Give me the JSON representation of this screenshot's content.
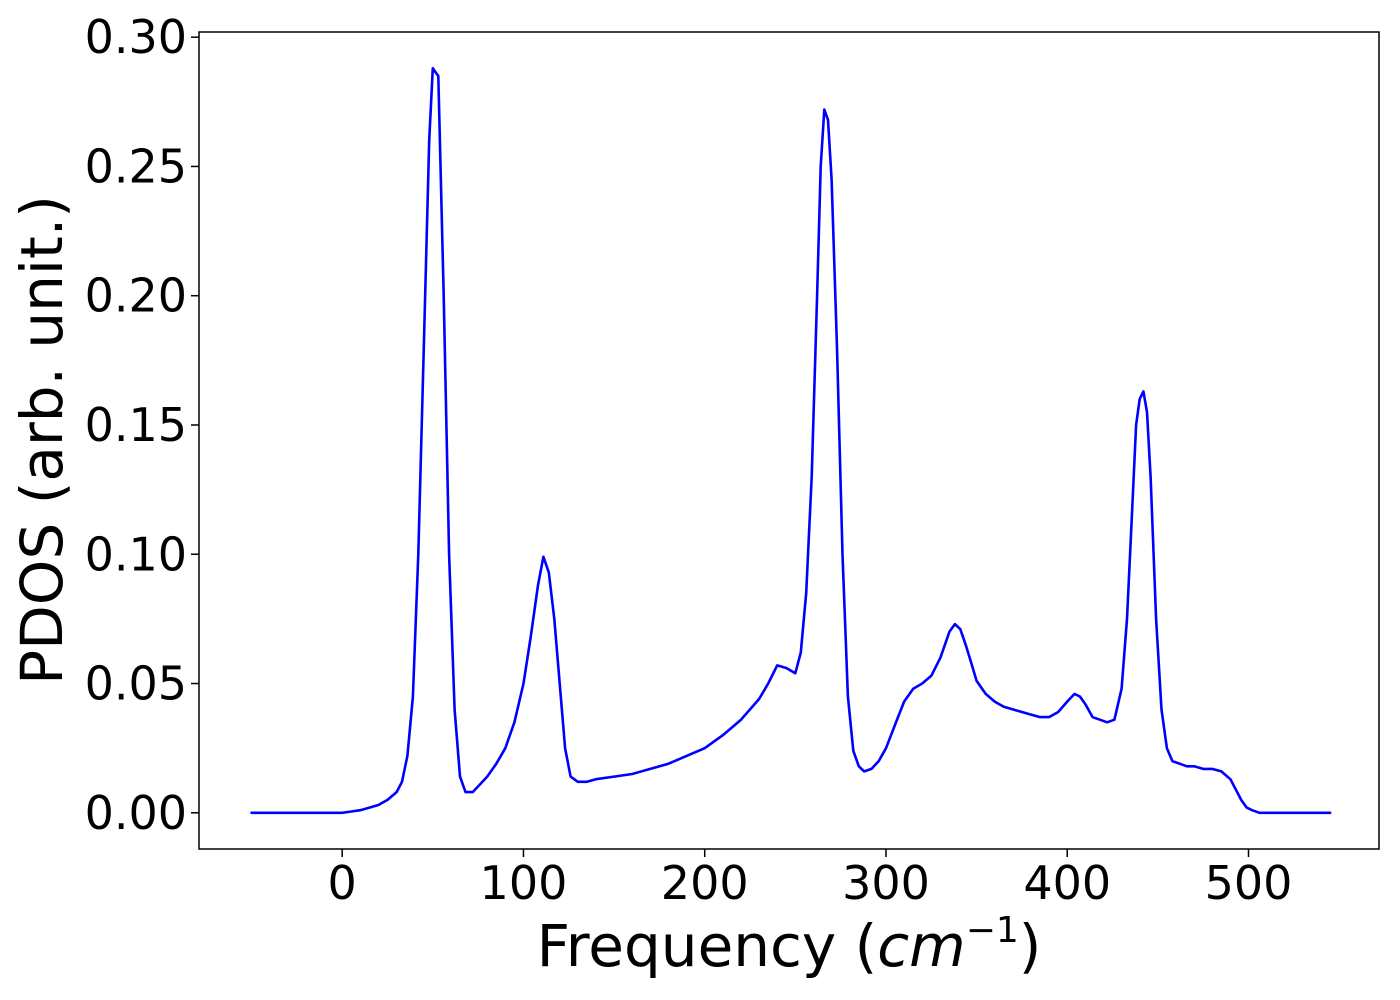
{
  "chart_data": {
    "type": "line",
    "title": "",
    "xlabel_prefix": "Frequency (",
    "xlabel_unit": "cm",
    "xlabel_exponent": "−1",
    "xlabel_suffix": ")",
    "ylabel": "PDOS (arb. unit.)",
    "xlim": [
      -79,
      572
    ],
    "ylim": [
      -0.014,
      0.302
    ],
    "xticks": [
      0,
      100,
      200,
      300,
      400,
      500
    ],
    "xtick_labels": [
      "0",
      "100",
      "200",
      "300",
      "400",
      "500"
    ],
    "yticks": [
      0.0,
      0.05,
      0.1,
      0.15,
      0.2,
      0.25,
      0.3
    ],
    "ytick_labels": [
      "0.00",
      "0.05",
      "0.10",
      "0.15",
      "0.20",
      "0.25",
      "0.30"
    ],
    "grid": false,
    "legend": "none",
    "series": [
      {
        "color": "#0000ff",
        "x": [
          -50,
          -40,
          -30,
          -20,
          -10,
          0,
          5,
          10,
          15,
          20,
          25,
          30,
          33,
          36,
          39,
          42,
          45,
          48,
          50,
          53,
          56,
          59,
          62,
          65,
          68,
          72,
          76,
          80,
          85,
          90,
          95,
          100,
          104,
          108,
          111,
          114,
          117,
          120,
          123,
          126,
          130,
          135,
          140,
          150,
          160,
          170,
          180,
          190,
          200,
          210,
          220,
          230,
          235,
          240,
          245,
          250,
          253,
          256,
          259,
          262,
          264,
          266,
          268,
          270,
          273,
          276,
          279,
          282,
          285,
          288,
          292,
          296,
          300,
          305,
          310,
          315,
          320,
          325,
          330,
          335,
          338,
          341,
          344,
          347,
          350,
          355,
          360,
          365,
          370,
          375,
          380,
          385,
          390,
          395,
          400,
          404,
          407,
          410,
          414,
          418,
          422,
          426,
          430,
          433,
          436,
          438,
          440,
          442,
          444,
          446,
          449,
          452,
          455,
          458,
          462,
          466,
          470,
          475,
          480,
          485,
          490,
          493,
          496,
          499,
          502,
          506,
          510,
          520,
          530,
          545
        ],
        "y": [
          0,
          0,
          0,
          0,
          0,
          0,
          0.0005,
          0.001,
          0.002,
          0.003,
          0.005,
          0.008,
          0.012,
          0.022,
          0.045,
          0.1,
          0.18,
          0.26,
          0.288,
          0.285,
          0.2,
          0.1,
          0.04,
          0.014,
          0.008,
          0.008,
          0.011,
          0.014,
          0.019,
          0.025,
          0.035,
          0.05,
          0.068,
          0.088,
          0.099,
          0.093,
          0.075,
          0.05,
          0.025,
          0.014,
          0.012,
          0.012,
          0.013,
          0.014,
          0.015,
          0.017,
          0.019,
          0.022,
          0.025,
          0.03,
          0.036,
          0.044,
          0.05,
          0.057,
          0.056,
          0.054,
          0.062,
          0.085,
          0.13,
          0.2,
          0.25,
          0.272,
          0.268,
          0.245,
          0.18,
          0.1,
          0.045,
          0.024,
          0.018,
          0.016,
          0.017,
          0.02,
          0.025,
          0.034,
          0.043,
          0.048,
          0.05,
          0.053,
          0.06,
          0.07,
          0.073,
          0.071,
          0.065,
          0.058,
          0.051,
          0.046,
          0.043,
          0.041,
          0.04,
          0.039,
          0.038,
          0.037,
          0.037,
          0.039,
          0.043,
          0.046,
          0.045,
          0.042,
          0.037,
          0.036,
          0.035,
          0.036,
          0.048,
          0.075,
          0.12,
          0.15,
          0.16,
          0.163,
          0.155,
          0.13,
          0.075,
          0.04,
          0.025,
          0.02,
          0.019,
          0.018,
          0.018,
          0.017,
          0.017,
          0.016,
          0.013,
          0.009,
          0.005,
          0.002,
          0.001,
          0,
          0,
          0,
          0,
          0
        ]
      }
    ]
  }
}
